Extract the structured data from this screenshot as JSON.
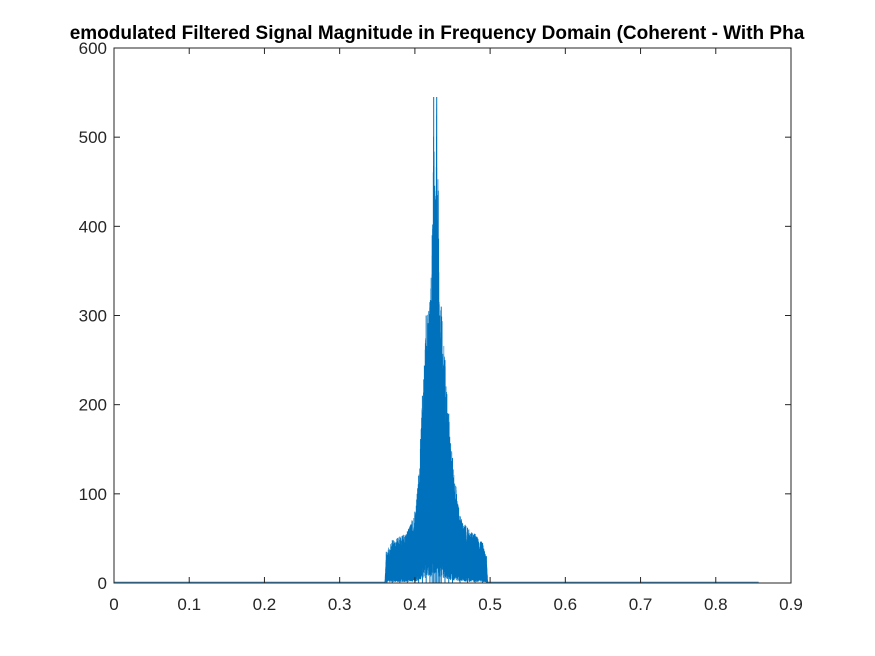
{
  "chart_data": {
    "type": "line",
    "title": "Demodulated Filtered Signal Magnitude in Frequency Domain (Coherent - With Phase Noise)",
    "title_visible": "emodulated Filtered Signal Magnitude in Frequency Domain (Coherent - With Pha",
    "xlabel": "",
    "ylabel": "",
    "xlim": [
      0,
      0.9
    ],
    "ylim": [
      0,
      600
    ],
    "x_ticks": [
      "0",
      "0.1",
      "0.2",
      "0.3",
      "0.4",
      "0.5",
      "0.6",
      "0.7",
      "0.8",
      "0.9"
    ],
    "y_ticks": [
      "0",
      "100",
      "200",
      "300",
      "400",
      "500",
      "600"
    ],
    "grid": false,
    "line_color": "#0072BD",
    "x_data_range": [
      0,
      0.857
    ],
    "series": [
      {
        "x": [
          0.0,
          0.36,
          0.362,
          0.37,
          0.38,
          0.39,
          0.4,
          0.405,
          0.41,
          0.415,
          0.42,
          0.423,
          0.425,
          0.427,
          0.429,
          0.431,
          0.433,
          0.435,
          0.44,
          0.445,
          0.45,
          0.46,
          0.47,
          0.48,
          0.49,
          0.495,
          0.497,
          0.857
        ],
        "y": [
          1,
          1,
          35,
          48,
          52,
          58,
          80,
          120,
          210,
          300,
          315,
          390,
          545,
          430,
          545,
          440,
          300,
          310,
          250,
          190,
          140,
          75,
          62,
          55,
          45,
          30,
          1,
          1
        ]
      }
    ]
  }
}
